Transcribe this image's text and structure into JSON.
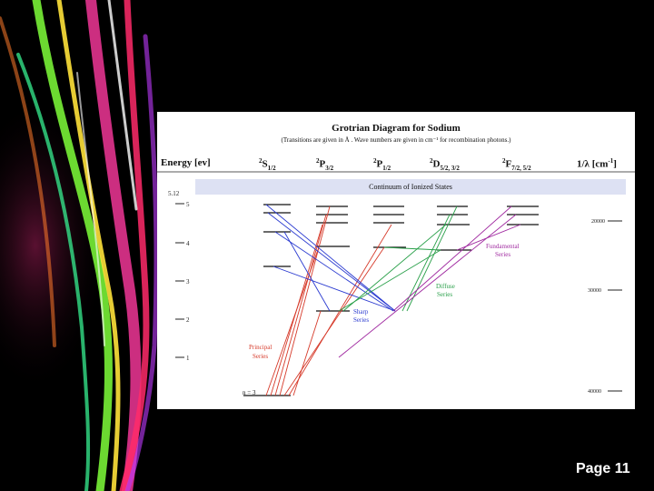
{
  "slide": {
    "page_label": "Page 11"
  },
  "diagram": {
    "title": "Grotrian Diagram for Sodium",
    "subtitle": "(Transitions are given in Å . Wave numbers are given in cm⁻¹ for recombination photons.)",
    "energy_header": "Energy [ev]",
    "term_columns": [
      {
        "base": "S",
        "mult": "2",
        "sub": "1/2"
      },
      {
        "base": "P",
        "mult": "2",
        "sub": "3/2"
      },
      {
        "base": "P",
        "mult": "2",
        "sub": "1/2"
      },
      {
        "base": "D",
        "mult": "2",
        "sub": "5/2, 3/2"
      },
      {
        "base": "F",
        "mult": "2",
        "sub": "7/2, 5/2"
      }
    ],
    "wavenumber_header": "1/λ [cm",
    "wavenumber_header_exp": "-1",
    "wavenumber_header_end": "]",
    "continuum_label": "Continuum of Ionized States",
    "energy_tick_labels": [
      "5.12",
      "5",
      "4",
      "3",
      "2",
      "1"
    ],
    "wavenumber_tick_labels": [
      "20000",
      "30000",
      "40000"
    ],
    "ground_label": "n = 3",
    "series_labels": {
      "principal": [
        "Principal",
        "Series"
      ],
      "sharp": [
        "Sharp",
        "Series"
      ],
      "diffuse": [
        "Diffuse",
        "Series"
      ],
      "fundamental": [
        "Fundamental",
        "Series"
      ]
    },
    "colors": {
      "principal": "#d63a2a",
      "sharp": "#2a3ad0",
      "diffuse": "#2aa04a",
      "fundamental": "#a02aa0"
    }
  }
}
